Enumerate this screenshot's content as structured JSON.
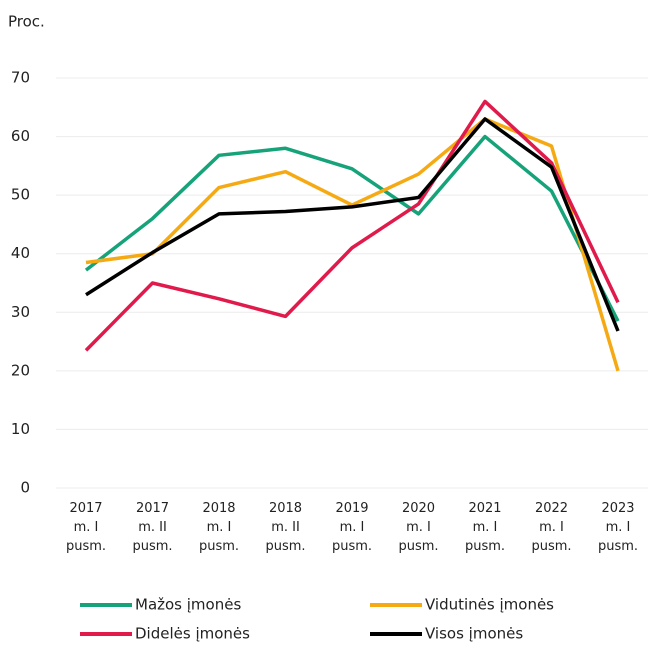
{
  "chart_data": {
    "type": "line",
    "y_label": "Proc.",
    "categories": [
      "2017\nm. I\npusm.",
      "2017\nm. II\npusm.",
      "2018\nm. I\npusm.",
      "2018\nm. II\npusm.",
      "2019\nm. I\npusm.",
      "2020\nm. I\npusm.",
      "2021\nm. I\npusm.",
      "2022\nm. I\npusm.",
      "2023\nm. I\npusm."
    ],
    "series": [
      {
        "name": "Mažos įmonės",
        "color": "#16a37a",
        "values": [
          37.2,
          46,
          56.8,
          58,
          54.5,
          46.8,
          60,
          50.7,
          28.5
        ]
      },
      {
        "name": "Vidutinės įmonės",
        "color": "#f5aa14",
        "values": [
          38.5,
          40,
          51.3,
          54,
          48.3,
          53.6,
          63,
          58.4,
          20
        ]
      },
      {
        "name": "Didelės įmonės",
        "color": "#e01a4b",
        "values": [
          23.5,
          35,
          32.3,
          29.3,
          41,
          48.5,
          66,
          55.5,
          31.7
        ]
      },
      {
        "name": "Visos įmonės",
        "color": "#000000",
        "values": [
          33,
          40.2,
          46.8,
          47.2,
          48,
          49.6,
          63,
          54.8,
          26.8
        ]
      }
    ],
    "ylim": [
      0,
      70
    ],
    "yticks": [
      0,
      10,
      20,
      30,
      40,
      50,
      60,
      70
    ],
    "grid": true
  }
}
